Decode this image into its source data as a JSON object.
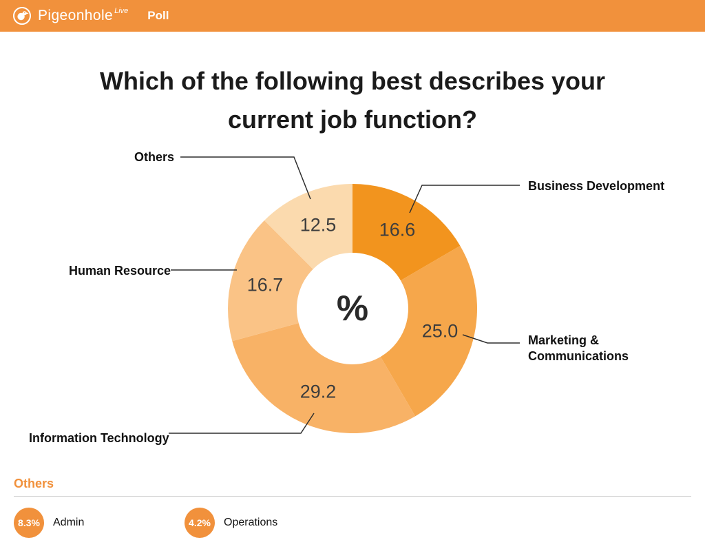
{
  "header": {
    "brand": "Pigeonhole",
    "brand_superscript": "Live",
    "section_label": "Poll"
  },
  "poll": {
    "title_line1": "Which of the following best describes your",
    "title_line2": "current job function?"
  },
  "chart_data": {
    "type": "pie",
    "subtype": "donut",
    "unit": "percent",
    "center_label": "%",
    "start_angle_deg": 0,
    "direction": "clockwise",
    "series": [
      {
        "label": "Business Development",
        "value": 16.6,
        "color": "#F2941E"
      },
      {
        "label": "Marketing & Communications",
        "value": 25.0,
        "color": "#F6A74B"
      },
      {
        "label": "Information Technology",
        "value": 29.2,
        "color": "#F8B266"
      },
      {
        "label": "Human Resource",
        "value": 16.7,
        "color": "#FAC386"
      },
      {
        "label": "Others",
        "value": 12.5,
        "color": "#FBDAAE"
      }
    ]
  },
  "others_section": {
    "heading": "Others",
    "items": [
      {
        "value": "8.3%",
        "label": "Admin"
      },
      {
        "value": "4.2%",
        "label": "Operations"
      }
    ]
  },
  "colors": {
    "brand_orange": "#F1913C"
  }
}
